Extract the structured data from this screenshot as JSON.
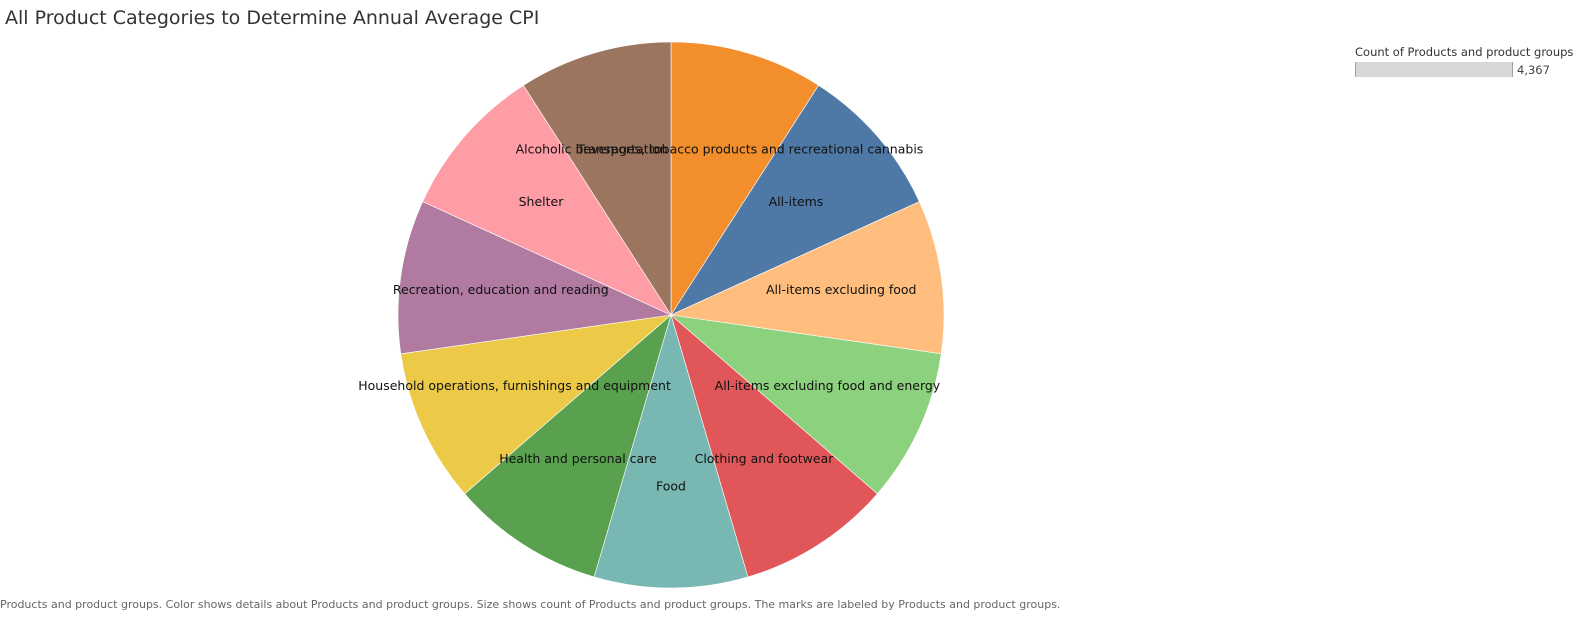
{
  "chart_data": {
    "type": "pie",
    "title": "All Product Categories to Determine Annual Average CPI",
    "start_angle_deg": 0,
    "direction": "clockwise",
    "categories": [
      "Alcoholic beverages, tobacco products and recreational cannabis",
      "All-items",
      "All-items excluding food",
      "All-items excluding food and energy",
      "Clothing and footwear",
      "Food",
      "Health and personal care",
      "Household operations, furnishings and equipment",
      "Recreation, education and reading",
      "Shelter",
      "Transportation"
    ],
    "values": [
      397,
      397,
      397,
      397,
      397,
      397,
      397,
      397,
      397,
      397,
      397
    ],
    "colors": [
      "#f28e2b",
      "#4e79a7",
      "#ffbe7d",
      "#8cd17d",
      "#e15759",
      "#79b7b2",
      "#59a14f",
      "#edc948",
      "#b07aa1",
      "#ff9da7",
      "#9c755f"
    ],
    "legend": {
      "title": "Count of Products and product groups",
      "value_label": "4,367",
      "placement": "top-right"
    }
  },
  "caption": "Products and product groups.  Color shows details about Products and product groups.  Size shows count of Products and product groups.  The marks are labeled by Products and product groups."
}
